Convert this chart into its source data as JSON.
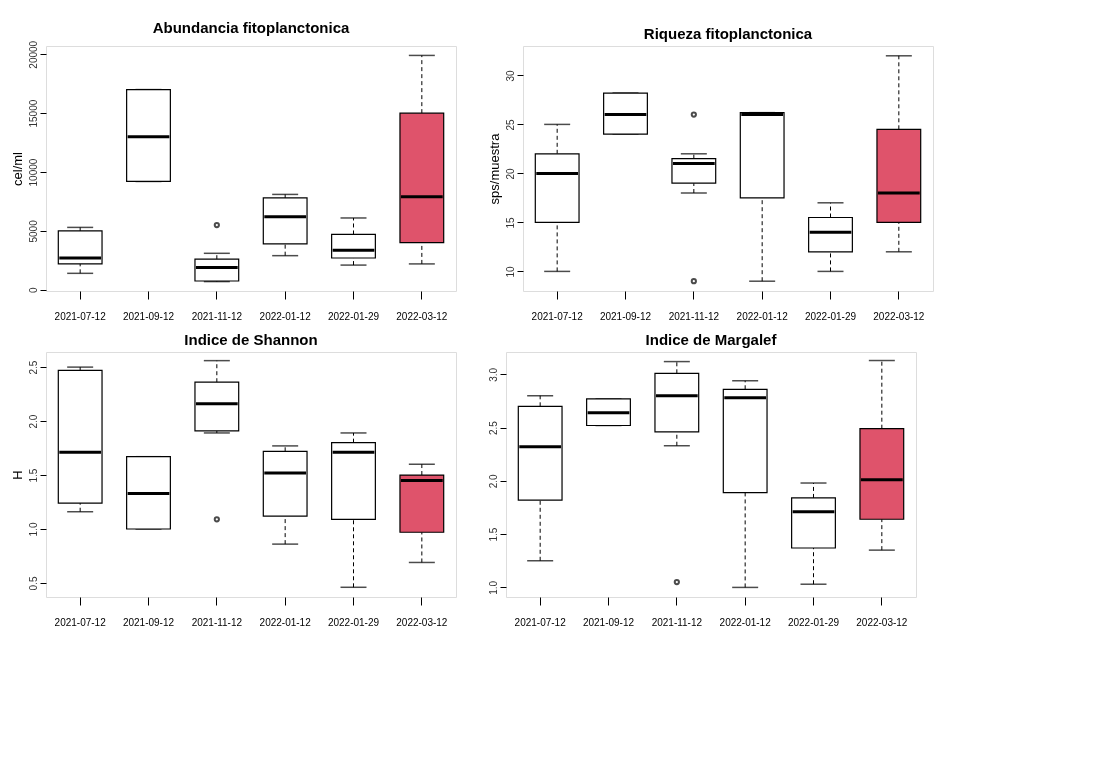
{
  "chart_data": [
    {
      "type": "box",
      "title": "Abundancia fitoplanctonica",
      "ylabel": "cel/ml",
      "categories": [
        "2021-07-12",
        "2021-09-12",
        "2021-11-12",
        "2022-01-12",
        "2022-01-29",
        "2022-03-12"
      ],
      "colors": [
        "#ffffff",
        "#ffffff",
        "#ffffff",
        "#ffffff",
        "#ffffff",
        "#df536b"
      ],
      "boxes": [
        {
          "low": 1400,
          "q1": 2200,
          "median": 2700,
          "q3": 5000,
          "high": 5300
        },
        {
          "low": 9200,
          "q1": 9200,
          "median": 13000,
          "q3": 17000,
          "high": 17000
        },
        {
          "low": 700,
          "q1": 750,
          "median": 1900,
          "q3": 2600,
          "high": 3100,
          "outliers": [
            5500
          ]
        },
        {
          "low": 2900,
          "q1": 3900,
          "median": 6200,
          "q3": 7800,
          "high": 8100
        },
        {
          "low": 2100,
          "q1": 2700,
          "median": 3350,
          "q3": 4700,
          "high": 6100
        },
        {
          "low": 2200,
          "q1": 4000,
          "median": 7900,
          "q3": 15000,
          "high": 19900
        }
      ],
      "ylim": [
        -100,
        20700
      ],
      "yticks": [
        0,
        5000,
        10000,
        15000,
        20000
      ],
      "grid": false
    },
    {
      "type": "box",
      "title": "Riqueza fitoplanctonica",
      "ylabel": "sps/muestra",
      "categories": [
        "2021-07-12",
        "2021-09-12",
        "2021-11-12",
        "2022-01-12",
        "2022-01-29",
        "2022-03-12"
      ],
      "colors": [
        "#ffffff",
        "#ffffff",
        "#ffffff",
        "#ffffff",
        "#ffffff",
        "#df536b"
      ],
      "boxes": [
        {
          "low": 10,
          "q1": 15,
          "median": 20,
          "q3": 22,
          "high": 25
        },
        {
          "low": 24,
          "q1": 24,
          "median": 26,
          "q3": 28.2,
          "high": 28.2
        },
        {
          "low": 18,
          "q1": 19,
          "median": 21,
          "q3": 21.5,
          "high": 22,
          "outliers": [
            26,
            9
          ]
        },
        {
          "low": 9,
          "q1": 17.5,
          "median": 26,
          "q3": 26.2,
          "high": 26.2
        },
        {
          "low": 10,
          "q1": 12,
          "median": 14,
          "q3": 15.5,
          "high": 17
        },
        {
          "low": 12,
          "q1": 15,
          "median": 18,
          "q3": 24.5,
          "high": 32
        }
      ],
      "ylim": [
        8,
        33
      ],
      "yticks": [
        10,
        15,
        20,
        25,
        30
      ],
      "grid": false
    },
    {
      "type": "box",
      "title": "Indice de Shannon",
      "ylabel": "H",
      "categories": [
        "2021-07-12",
        "2021-09-12",
        "2021-11-12",
        "2022-01-12",
        "2022-01-29",
        "2022-03-12"
      ],
      "colors": [
        "#ffffff",
        "#ffffff",
        "#ffffff",
        "#ffffff",
        "#ffffff",
        "#df536b"
      ],
      "boxes": [
        {
          "low": 1.16,
          "q1": 1.24,
          "median": 1.71,
          "q3": 2.47,
          "high": 2.5
        },
        {
          "low": 1.0,
          "q1": 1.0,
          "median": 1.33,
          "q3": 1.67,
          "high": 1.67
        },
        {
          "low": 1.89,
          "q1": 1.91,
          "median": 2.16,
          "q3": 2.36,
          "high": 2.56,
          "outliers": [
            1.09
          ]
        },
        {
          "low": 0.86,
          "q1": 1.12,
          "median": 1.52,
          "q3": 1.72,
          "high": 1.77
        },
        {
          "low": 0.46,
          "q1": 1.09,
          "median": 1.71,
          "q3": 1.8,
          "high": 1.89
        },
        {
          "low": 0.69,
          "q1": 0.97,
          "median": 1.45,
          "q3": 1.5,
          "high": 1.6
        }
      ],
      "ylim": [
        0.37,
        2.64
      ],
      "yticks": [
        0.5,
        {
          "value": 1,
          "label": "1.0"
        },
        1.5,
        {
          "value": 2,
          "label": "2.0"
        },
        2.5
      ],
      "grid": false
    },
    {
      "type": "box",
      "title": "Indice de Margalef",
      "categories": [
        "2021-07-12",
        "2021-09-12",
        "2021-11-12",
        "2022-01-12",
        "2022-01-29",
        "2022-03-12"
      ],
      "colors": [
        "#ffffff",
        "#ffffff",
        "#ffffff",
        "#ffffff",
        "#ffffff",
        "#df536b"
      ],
      "boxes": [
        {
          "low": 1.25,
          "q1": 1.82,
          "median": 2.32,
          "q3": 2.7,
          "high": 2.8
        },
        {
          "low": 2.52,
          "q1": 2.52,
          "median": 2.64,
          "q3": 2.77,
          "high": 2.77
        },
        {
          "low": 2.33,
          "q1": 2.46,
          "median": 2.8,
          "q3": 3.01,
          "high": 3.12,
          "outliers": [
            1.05
          ]
        },
        {
          "low": 1.0,
          "q1": 1.89,
          "median": 2.78,
          "q3": 2.86,
          "high": 2.94
        },
        {
          "low": 1.03,
          "q1": 1.37,
          "median": 1.71,
          "q3": 1.84,
          "high": 1.98
        },
        {
          "low": 1.35,
          "q1": 1.64,
          "median": 2.01,
          "q3": 2.49,
          "high": 3.13
        }
      ],
      "ylim": [
        0.91,
        3.21
      ],
      "yticks": [
        {
          "value": 1,
          "label": "1.0"
        },
        1.5,
        {
          "value": 2,
          "label": "2.0"
        },
        2.5,
        {
          "value": 3,
          "label": "3.0"
        }
      ],
      "grid": false
    }
  ]
}
